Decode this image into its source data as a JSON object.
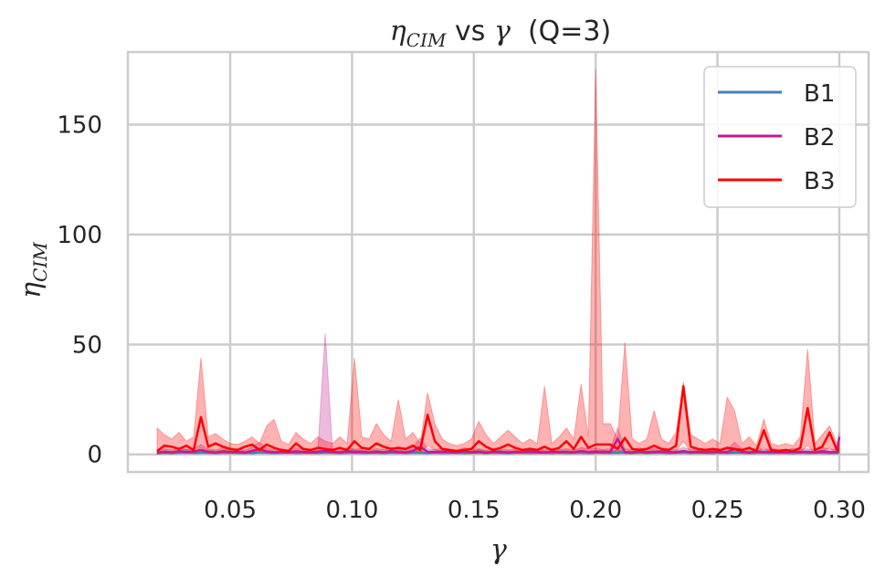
{
  "chart_data": {
    "type": "line",
    "title_parts": [
      "η",
      "CIM",
      " vs ",
      "γ",
      "  (Q=3)"
    ],
    "xlabel": "γ",
    "ylabel_parts": [
      "η",
      "CIM"
    ],
    "xlim": [
      0.008,
      0.312
    ],
    "ylim": [
      -8,
      183
    ],
    "xticks": [
      0.05,
      0.1,
      0.15,
      0.2,
      0.25,
      0.3
    ],
    "xtick_labels": [
      "0.05",
      "0.10",
      "0.15",
      "0.20",
      "0.25",
      "0.30"
    ],
    "yticks": [
      0,
      50,
      100,
      150
    ],
    "ytick_labels": [
      "0",
      "50",
      "100",
      "150"
    ],
    "grid": true,
    "legend_position": "top-right",
    "x": [
      0.02,
      0.023,
      0.026,
      0.029,
      0.032,
      0.035,
      0.038,
      0.041,
      0.044,
      0.047,
      0.05,
      0.053,
      0.056,
      0.059,
      0.062,
      0.065,
      0.068,
      0.071,
      0.074,
      0.077,
      0.08,
      0.083,
      0.086,
      0.089,
      0.092,
      0.095,
      0.098,
      0.101,
      0.104,
      0.107,
      0.11,
      0.113,
      0.116,
      0.119,
      0.122,
      0.125,
      0.128,
      0.131,
      0.134,
      0.137,
      0.14,
      0.143,
      0.146,
      0.149,
      0.152,
      0.155,
      0.158,
      0.161,
      0.164,
      0.167,
      0.17,
      0.173,
      0.176,
      0.179,
      0.182,
      0.185,
      0.188,
      0.191,
      0.194,
      0.197,
      0.2,
      0.203,
      0.206,
      0.209,
      0.212,
      0.215,
      0.218,
      0.221,
      0.224,
      0.227,
      0.23,
      0.233,
      0.236,
      0.239,
      0.242,
      0.245,
      0.248,
      0.251,
      0.254,
      0.257,
      0.26,
      0.263,
      0.266,
      0.269,
      0.272,
      0.275,
      0.278,
      0.281,
      0.284,
      0.287,
      0.29,
      0.293,
      0.296,
      0.299,
      0.3
    ],
    "series": [
      {
        "name": "B1",
        "color": "#4a7fae",
        "values": [
          0.5,
          0.8,
          0.6,
          0.9,
          1.2,
          0.7,
          0.8,
          1.0,
          0.6,
          0.9,
          1.1,
          0.7,
          0.8,
          0.6,
          1.0,
          0.9,
          0.7,
          0.8,
          1.2,
          0.6,
          0.8,
          0.9,
          0.7,
          1.0,
          0.8,
          0.6,
          0.9,
          1.1,
          0.7,
          0.8,
          0.9,
          0.6,
          0.8,
          1.0,
          0.7,
          0.9,
          0.8,
          0.6,
          1.0,
          0.7,
          0.8,
          0.9,
          0.6,
          0.8,
          1.1,
          0.7,
          0.8,
          0.9,
          0.6,
          0.8,
          1.0,
          0.7,
          0.9,
          0.8,
          0.6,
          1.0,
          0.7,
          0.8,
          0.9,
          0.6,
          0.8,
          1.0,
          0.7,
          0.9,
          0.8,
          0.6,
          1.0,
          0.7,
          0.8,
          0.9,
          0.6,
          0.8,
          1.0,
          0.7,
          0.9,
          0.8,
          0.6,
          1.0,
          0.7,
          0.8,
          0.9,
          0.6,
          0.8,
          1.0,
          0.7,
          0.9,
          0.8,
          0.6,
          1.0,
          0.7,
          0.8,
          0.9,
          0.6,
          0.8,
          0.7
        ],
        "upper": [
          1.2,
          1.6,
          1.3,
          1.8,
          2.2,
          1.5,
          1.6,
          2.0,
          1.3,
          1.8,
          2.1,
          1.4,
          1.6,
          1.3,
          2.0,
          1.8,
          1.4,
          1.6,
          2.2,
          1.3,
          1.6,
          1.8,
          1.4,
          2.0,
          1.6,
          1.3,
          1.8,
          2.1,
          1.4,
          1.6,
          1.8,
          1.3,
          1.6,
          2.0,
          1.4,
          1.8,
          1.6,
          1.3,
          2.0,
          1.4,
          1.6,
          1.8,
          1.3,
          1.6,
          2.1,
          1.4,
          1.6,
          1.8,
          1.3,
          1.6,
          2.0,
          1.4,
          1.8,
          1.6,
          1.3,
          2.0,
          1.4,
          1.6,
          1.8,
          1.3,
          1.6,
          2.0,
          1.4,
          1.8,
          1.6,
          1.3,
          2.0,
          1.4,
          1.6,
          1.8,
          1.3,
          1.6,
          2.0,
          1.4,
          1.8,
          1.6,
          1.3,
          2.0,
          1.4,
          1.6,
          1.8,
          1.3,
          1.6,
          2.0,
          1.4,
          1.8,
          1.6,
          1.3,
          2.0,
          1.4,
          1.6,
          1.8,
          1.3,
          1.6,
          1.4
        ],
        "lower": [
          0.1,
          0.3,
          0.2,
          0.3,
          0.5,
          0.2,
          0.3,
          0.4,
          0.2,
          0.3,
          0.4,
          0.2,
          0.3,
          0.2,
          0.4,
          0.3,
          0.2,
          0.3,
          0.5,
          0.2,
          0.3,
          0.3,
          0.2,
          0.4,
          0.3,
          0.2,
          0.3,
          0.4,
          0.2,
          0.3,
          0.3,
          0.2,
          0.3,
          0.4,
          0.2,
          0.3,
          0.3,
          0.2,
          0.4,
          0.2,
          0.3,
          0.3,
          0.2,
          0.3,
          0.4,
          0.2,
          0.3,
          0.3,
          0.2,
          0.3,
          0.4,
          0.2,
          0.3,
          0.3,
          0.2,
          0.4,
          0.2,
          0.3,
          0.3,
          0.2,
          0.3,
          0.4,
          0.2,
          0.3,
          0.3,
          0.2,
          0.4,
          0.2,
          0.3,
          0.3,
          0.2,
          0.3,
          0.4,
          0.2,
          0.3,
          0.3,
          0.2,
          0.4,
          0.2,
          0.3,
          0.3,
          0.2,
          0.3,
          0.4,
          0.2,
          0.3,
          0.3,
          0.2,
          0.4,
          0.2,
          0.3,
          0.3,
          0.2,
          0.3,
          0.2
        ]
      },
      {
        "name": "B2",
        "color": "#c51b8a",
        "values": [
          0.8,
          1.2,
          0.9,
          1.5,
          1.0,
          1.3,
          2.0,
          1.1,
          0.9,
          1.4,
          1.0,
          1.2,
          0.8,
          1.6,
          2.5,
          1.3,
          1.0,
          1.2,
          0.9,
          1.4,
          1.1,
          0.9,
          1.3,
          1.5,
          1.2,
          1.0,
          1.4,
          1.1,
          1.3,
          0.9,
          1.2,
          1.0,
          1.5,
          1.1,
          0.9,
          1.6,
          3.5,
          1.2,
          1.0,
          1.3,
          1.1,
          0.9,
          1.4,
          1.0,
          1.2,
          0.8,
          1.3,
          1.1,
          0.9,
          1.2,
          1.0,
          1.4,
          1.1,
          0.9,
          1.3,
          1.0,
          1.2,
          0.9,
          1.5,
          1.1,
          1.3,
          1.0,
          1.2,
          7.0,
          1.1,
          0.9,
          1.4,
          1.0,
          1.2,
          1.3,
          1.1,
          0.9,
          1.5,
          1.0,
          1.2,
          0.9,
          1.3,
          1.1,
          1.0,
          2.5,
          1.2,
          0.9,
          1.4,
          1.0,
          1.2,
          1.1,
          0.9,
          1.3,
          1.0,
          1.2,
          0.9,
          1.4,
          1.1,
          1.0,
          8.0
        ],
        "upper": [
          1.8,
          2.5,
          2.0,
          3.0,
          2.2,
          2.8,
          4.5,
          2.4,
          2.0,
          3.0,
          2.2,
          2.6,
          1.8,
          3.5,
          5.5,
          2.8,
          2.2,
          2.6,
          2.0,
          3.0,
          2.4,
          2.0,
          2.8,
          55.0,
          2.6,
          2.2,
          3.0,
          2.4,
          2.8,
          2.0,
          2.6,
          2.2,
          3.2,
          2.4,
          2.0,
          3.4,
          7.5,
          2.6,
          2.2,
          2.8,
          2.4,
          2.0,
          3.0,
          2.2,
          2.6,
          1.8,
          2.8,
          2.4,
          2.0,
          2.6,
          2.2,
          3.0,
          2.4,
          2.0,
          2.8,
          2.2,
          2.6,
          2.0,
          3.2,
          2.4,
          2.8,
          2.2,
          2.6,
          12.0,
          2.4,
          2.0,
          3.0,
          2.2,
          2.6,
          2.8,
          2.4,
          2.0,
          3.2,
          2.2,
          2.6,
          2.0,
          2.8,
          2.4,
          2.2,
          5.5,
          2.6,
          2.0,
          3.0,
          2.2,
          2.6,
          2.4,
          2.0,
          2.8,
          2.2,
          2.6,
          2.0,
          3.0,
          2.4,
          2.2,
          10.0
        ],
        "lower": [
          0.2,
          0.4,
          0.3,
          0.5,
          0.3,
          0.4,
          0.6,
          0.3,
          0.3,
          0.4,
          0.3,
          0.4,
          0.2,
          0.5,
          0.8,
          0.4,
          0.3,
          0.4,
          0.3,
          0.4,
          0.3,
          0.3,
          0.4,
          0.5,
          0.4,
          0.3,
          0.4,
          0.3,
          0.4,
          0.3,
          0.4,
          0.3,
          0.5,
          0.3,
          0.3,
          0.5,
          1.0,
          0.4,
          0.3,
          0.4,
          0.3,
          0.3,
          0.4,
          0.3,
          0.4,
          0.2,
          0.4,
          0.3,
          0.3,
          0.4,
          0.3,
          0.4,
          0.3,
          0.3,
          0.4,
          0.3,
          0.4,
          0.3,
          0.5,
          0.3,
          0.4,
          0.3,
          0.4,
          2.0,
          0.3,
          0.3,
          0.4,
          0.3,
          0.4,
          0.4,
          0.3,
          0.3,
          0.5,
          0.3,
          0.4,
          0.3,
          0.4,
          0.3,
          0.3,
          0.8,
          0.4,
          0.3,
          0.4,
          0.3,
          0.4,
          0.3,
          0.3,
          0.4,
          0.3,
          0.4,
          0.3,
          0.4,
          0.3,
          0.3,
          2.5
        ]
      },
      {
        "name": "B3",
        "color": "#ff0000",
        "values": [
          1.5,
          4.0,
          3.5,
          2.5,
          4.0,
          2.0,
          17.0,
          3.5,
          5.0,
          3.5,
          2.5,
          2.0,
          3.5,
          4.5,
          2.0,
          4.5,
          3.0,
          2.0,
          1.5,
          5.0,
          2.5,
          2.0,
          3.0,
          2.5,
          2.0,
          3.0,
          2.0,
          6.0,
          3.0,
          2.5,
          5.0,
          3.5,
          2.5,
          3.0,
          2.5,
          4.0,
          2.0,
          18.0,
          6.0,
          2.5,
          2.0,
          1.5,
          2.0,
          2.5,
          6.0,
          3.5,
          2.0,
          3.0,
          4.5,
          3.0,
          2.0,
          2.5,
          2.0,
          3.5,
          2.0,
          3.0,
          6.0,
          2.5,
          8.0,
          3.0,
          4.5,
          4.5,
          4.5,
          2.5,
          7.5,
          2.5,
          2.0,
          2.5,
          4.0,
          2.5,
          2.0,
          4.0,
          31.0,
          3.5,
          2.5,
          2.0,
          2.5,
          2.0,
          3.0,
          2.5,
          2.0,
          3.0,
          1.5,
          11.0,
          2.0,
          1.5,
          2.0,
          1.5,
          3.0,
          21.0,
          2.0,
          3.5,
          10.0,
          2.0,
          2.0
        ],
        "upper": [
          12.0,
          9.0,
          7.0,
          10.0,
          6.0,
          8.0,
          44.0,
          8.0,
          9.5,
          7.0,
          5.0,
          4.5,
          6.0,
          8.0,
          5.0,
          13.0,
          16.0,
          6.0,
          4.5,
          10.0,
          7.0,
          5.0,
          8.0,
          6.0,
          5.0,
          8.0,
          5.0,
          44.0,
          8.0,
          7.0,
          14.0,
          9.0,
          6.0,
          25.0,
          7.0,
          10.0,
          5.0,
          28.0,
          14.0,
          7.0,
          5.0,
          4.0,
          5.0,
          7.0,
          15.0,
          9.0,
          5.0,
          8.0,
          11.0,
          8.0,
          5.0,
          7.0,
          5.0,
          31.0,
          5.0,
          8.0,
          12.0,
          7.0,
          32.0,
          8.0,
          175.0,
          14.0,
          14.0,
          7.0,
          51.0,
          7.0,
          5.0,
          7.0,
          20.0,
          7.0,
          5.0,
          10.0,
          33.0,
          9.0,
          7.0,
          5.0,
          7.0,
          5.0,
          26.0,
          20.0,
          5.0,
          8.0,
          4.0,
          16.0,
          5.0,
          4.0,
          5.0,
          4.0,
          8.0,
          48.0,
          5.0,
          9.0,
          13.0,
          5.0,
          5.0
        ],
        "lower": [
          0.5,
          1.5,
          1.2,
          0.8,
          1.5,
          0.6,
          3.0,
          1.2,
          1.8,
          1.2,
          0.8,
          0.6,
          1.2,
          1.6,
          0.6,
          1.6,
          1.0,
          0.6,
          0.5,
          1.8,
          0.8,
          0.6,
          1.0,
          0.8,
          0.6,
          1.0,
          0.6,
          1.5,
          1.0,
          0.8,
          1.8,
          1.2,
          0.8,
          1.0,
          0.8,
          1.4,
          0.6,
          4.0,
          2.0,
          0.8,
          0.6,
          0.5,
          0.6,
          0.8,
          2.0,
          1.2,
          0.6,
          1.0,
          1.6,
          1.0,
          0.6,
          0.8,
          0.6,
          1.2,
          0.6,
          1.0,
          2.0,
          0.8,
          2.5,
          1.0,
          1.5,
          1.6,
          1.6,
          0.8,
          2.5,
          0.8,
          0.6,
          0.8,
          1.4,
          0.8,
          0.6,
          1.4,
          6.0,
          1.2,
          0.8,
          0.6,
          0.8,
          0.6,
          1.0,
          0.8,
          0.6,
          1.0,
          0.5,
          3.0,
          0.6,
          0.5,
          0.6,
          0.5,
          1.0,
          4.0,
          0.6,
          1.2,
          3.0,
          0.6,
          0.6
        ]
      }
    ]
  }
}
